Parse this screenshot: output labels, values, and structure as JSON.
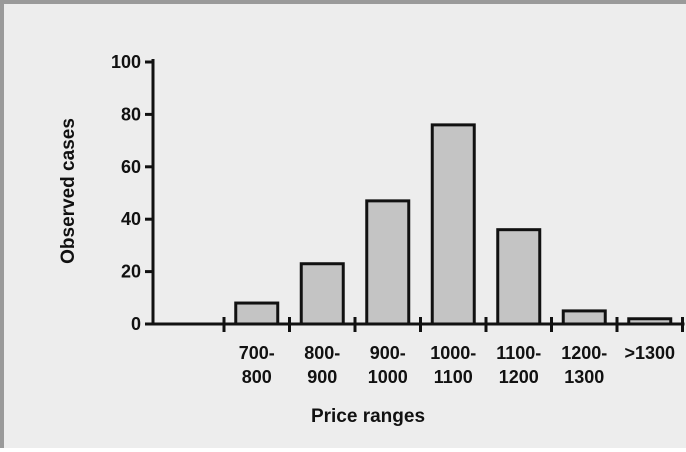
{
  "chart_data": {
    "type": "bar",
    "categories": [
      [
        "700-",
        "800"
      ],
      [
        "800-",
        "900"
      ],
      [
        "900-",
        "1000"
      ],
      [
        "1000-",
        "1100"
      ],
      [
        "1100-",
        "1200"
      ],
      [
        "1200-",
        "1300"
      ],
      [
        ">1300"
      ]
    ],
    "values": [
      8,
      23,
      47,
      76,
      36,
      5,
      2
    ],
    "xlabel": "Price ranges",
    "ylabel": "Observed cases",
    "ylim": [
      0,
      100
    ],
    "yticks": [
      "0",
      "20",
      "40",
      "60",
      "80",
      "100"
    ],
    "grid": false,
    "legend": "none",
    "colors": {
      "bar_fill": "#c4c4c4",
      "bar_stroke": "#111111",
      "background": "#ededed",
      "frame": "#9a9a9a",
      "axis": "#111111"
    }
  }
}
